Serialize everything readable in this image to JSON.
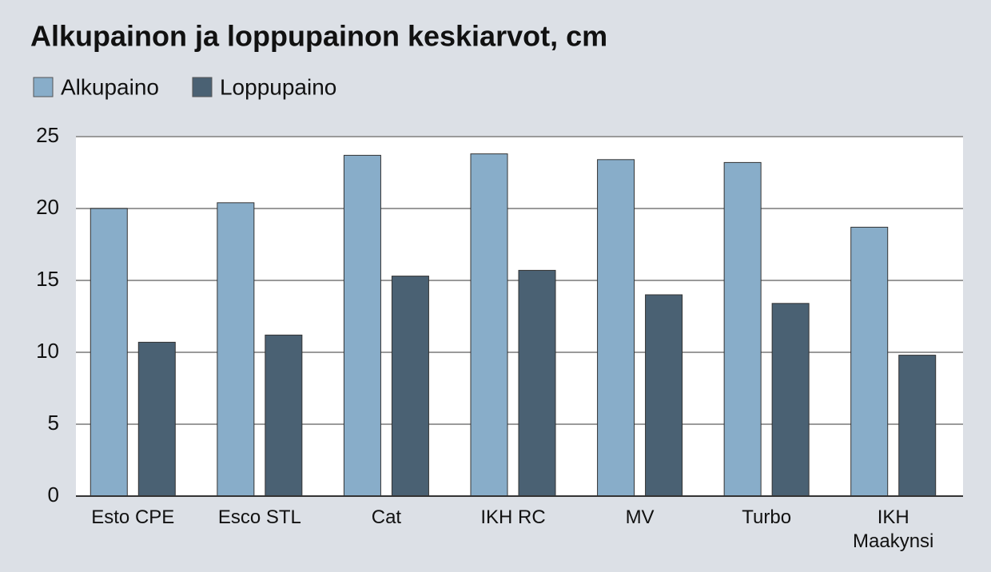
{
  "chart_data": {
    "type": "bar",
    "title": "Alkupainon ja loppupainon keskiarvot, cm",
    "categories": [
      "Esto CPE",
      "Esco STL",
      "Cat",
      "IKH RC",
      "MV",
      "Turbo",
      "IKH Maakynsi"
    ],
    "series": [
      {
        "name": "Alkupaino",
        "color": "#88adc9",
        "values": [
          20.0,
          20.4,
          23.7,
          23.8,
          23.4,
          23.2,
          18.7
        ]
      },
      {
        "name": "Loppupaino",
        "color": "#4a6173",
        "values": [
          10.7,
          11.2,
          15.3,
          15.7,
          14.0,
          13.4,
          9.8
        ]
      }
    ],
    "ylim": [
      0,
      25
    ],
    "yticks": [
      0,
      5,
      10,
      15,
      20,
      25
    ],
    "grid": true,
    "legend": "top-left"
  }
}
